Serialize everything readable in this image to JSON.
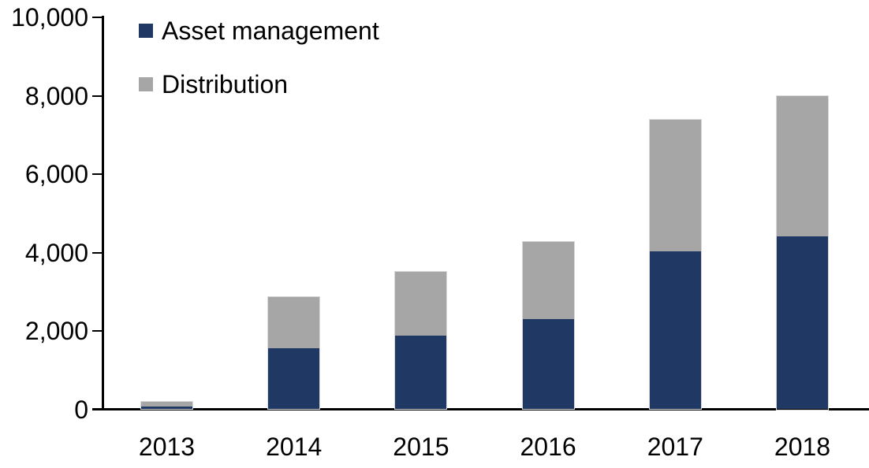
{
  "chart_data": {
    "type": "bar",
    "stacked": true,
    "title": "",
    "xlabel": "",
    "ylabel": "",
    "categories": [
      "2013",
      "2014",
      "2015",
      "2016",
      "2017",
      "2018"
    ],
    "series": [
      {
        "name": "Asset management",
        "color": "#1f3864",
        "values": [
          80,
          1550,
          1880,
          2300,
          4040,
          4410
        ]
      },
      {
        "name": "Distribution",
        "color": "#a6a6a6",
        "values": [
          120,
          1320,
          1630,
          1970,
          3350,
          3590
        ]
      }
    ],
    "totals": [
      200,
      2870,
      3510,
      4270,
      7390,
      8000
    ],
    "ylim": [
      0,
      10000
    ],
    "ytick_interval": 2000,
    "ytick_labels": [
      "0",
      "2,000",
      "4,000",
      "6,000",
      "8,000",
      "10,000"
    ],
    "grid": false,
    "legend_position": "top-left"
  },
  "colors": {
    "axis": "#000000",
    "text": "#000000",
    "background": "#ffffff",
    "bar_edge": "#d9d9d9"
  }
}
